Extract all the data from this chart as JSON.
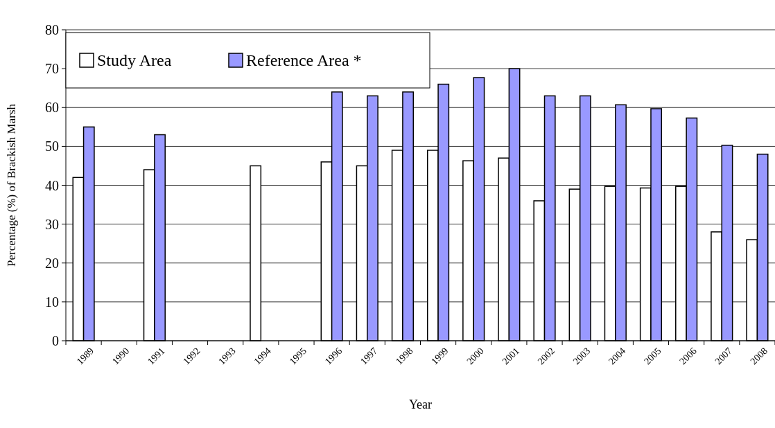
{
  "chart_data": {
    "type": "bar",
    "xlabel": "Year",
    "ylabel": "Percentage (%) of Brackish Marsh",
    "categories": [
      "1989",
      "1990",
      "1991",
      "1992",
      "1993",
      "1994",
      "1995",
      "1996",
      "1997",
      "1998",
      "1999",
      "2000",
      "2001",
      "2002",
      "2003",
      "2004",
      "2005",
      "2006",
      "2007",
      "2008"
    ],
    "series": [
      {
        "name": "Study Area",
        "color": "#ffffff",
        "values": [
          42,
          null,
          44,
          null,
          null,
          45,
          null,
          46,
          45,
          49,
          49,
          46.3,
          47,
          36,
          39,
          39.7,
          39.3,
          39.7,
          28,
          26
        ]
      },
      {
        "name": "Reference Area *",
        "color": "#9999ff",
        "values": [
          55,
          null,
          53,
          null,
          null,
          null,
          null,
          64,
          63,
          64,
          66,
          67.7,
          70,
          63,
          63,
          60.7,
          59.7,
          57.3,
          50.3,
          48
        ]
      }
    ],
    "ylim": [
      0,
      80
    ],
    "yticks": [
      0,
      10,
      20,
      30,
      40,
      50,
      60,
      70,
      80
    ],
    "grid": "y",
    "legend": "top left"
  }
}
